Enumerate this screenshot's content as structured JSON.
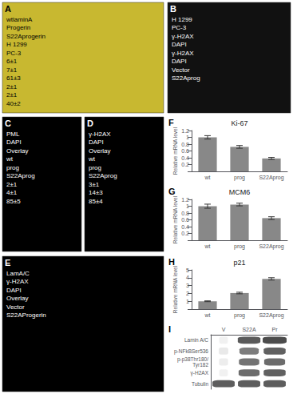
{
  "chart_data": [
    {
      "type": "image",
      "title": "A",
      "color": "#c8b830",
      "annotations": [
        "wtlaminA",
        "Progerin",
        "S22Aprogerin",
        "H 1299",
        "PC-3",
        "6±1",
        "7±1",
        "61±3",
        "2±1",
        "2±1",
        "40±2"
      ]
    },
    {
      "type": "image",
      "title": "B",
      "color": "#111111",
      "annotations": [
        "H 1299",
        "PC-3",
        "γ-H2AX",
        "DAPI",
        "γ-H2AX",
        "DAPI",
        "Vector",
        "S22Aprog"
      ]
    },
    {
      "type": "image",
      "title": "C",
      "color": "#000000",
      "annotations": [
        "PML",
        "DAPI",
        "Overlay",
        "wt",
        "prog",
        "S22Aprog",
        "2±1",
        "4±1",
        "85±5"
      ]
    },
    {
      "type": "image",
      "title": "D",
      "color": "#000000",
      "annotations": [
        "γ-H2AX",
        "DAPI",
        "Overlay",
        "wt",
        "prog",
        "S22Aprog",
        "3±1",
        "14±3",
        "85±4"
      ]
    },
    {
      "type": "image",
      "title": "E",
      "color": "#000000",
      "annotations": [
        "LamA/C",
        "γ-H2AX",
        "DAPI",
        "Overlay",
        "Vector",
        "S22AProgerin"
      ]
    },
    {
      "type": "bar",
      "title": "Ki-67",
      "annotations": [
        "F"
      ],
      "categories": [
        "wt",
        "prog",
        "S22Aprog"
      ],
      "values": [
        1.0,
        0.72,
        0.38
      ],
      "errors": [
        0.05,
        0.04,
        0.03
      ],
      "ylabel": "Relative mRNA level",
      "ylim": [
        0,
        1.2
      ],
      "yticks": [
        {
          "value": 0,
          "label": ""
        },
        0.2,
        0.4,
        0.6,
        0.8,
        1,
        1.2
      ],
      "color": "#888888",
      "grid": false
    },
    {
      "type": "bar",
      "title": "MCM6",
      "annotations": [
        "G"
      ],
      "categories": [
        "wt",
        "prog",
        "S22Aprog"
      ],
      "values": [
        1.0,
        1.05,
        0.65
      ],
      "errors": [
        0.06,
        0.04,
        0.04
      ],
      "ylabel": "Relative mRNA level",
      "ylim": [
        0,
        1.2
      ],
      "yticks": [
        {
          "value": 0,
          "label": ""
        },
        0.2,
        0.4,
        0.6,
        0.8,
        1,
        1.2
      ],
      "color": "#888888",
      "grid": false
    },
    {
      "type": "bar",
      "title": "p21",
      "annotations": [
        "H"
      ],
      "categories": [
        "wt",
        "prog",
        "S22Aprog"
      ],
      "values": [
        1.0,
        2.05,
        3.85
      ],
      "errors": [
        0.05,
        0.1,
        0.15
      ],
      "ylabel": "Relative mRNA level",
      "ylim": [
        0,
        5
      ],
      "yticks": [
        {
          "value": 0,
          "label": ""
        },
        1,
        2,
        3,
        4,
        5
      ],
      "color": "#888888",
      "grid": false
    },
    {
      "type": "heatmap",
      "annotations": [
        "I"
      ],
      "x": [
        "V",
        "S22A",
        "Pr"
      ],
      "y": [
        "Lamin A/C",
        "p-NFkBSer536",
        "p-p38Thr180/\nTyr182",
        "γ-H2AX",
        "Tubulin"
      ],
      "values": [
        [
          0.08,
          0.92,
          1.0
        ],
        [
          0.12,
          0.72,
          0.88
        ],
        [
          0.1,
          0.78,
          0.82
        ],
        [
          0.08,
          0.82,
          0.88
        ],
        [
          0.9,
          0.9,
          0.9
        ]
      ]
    }
  ]
}
